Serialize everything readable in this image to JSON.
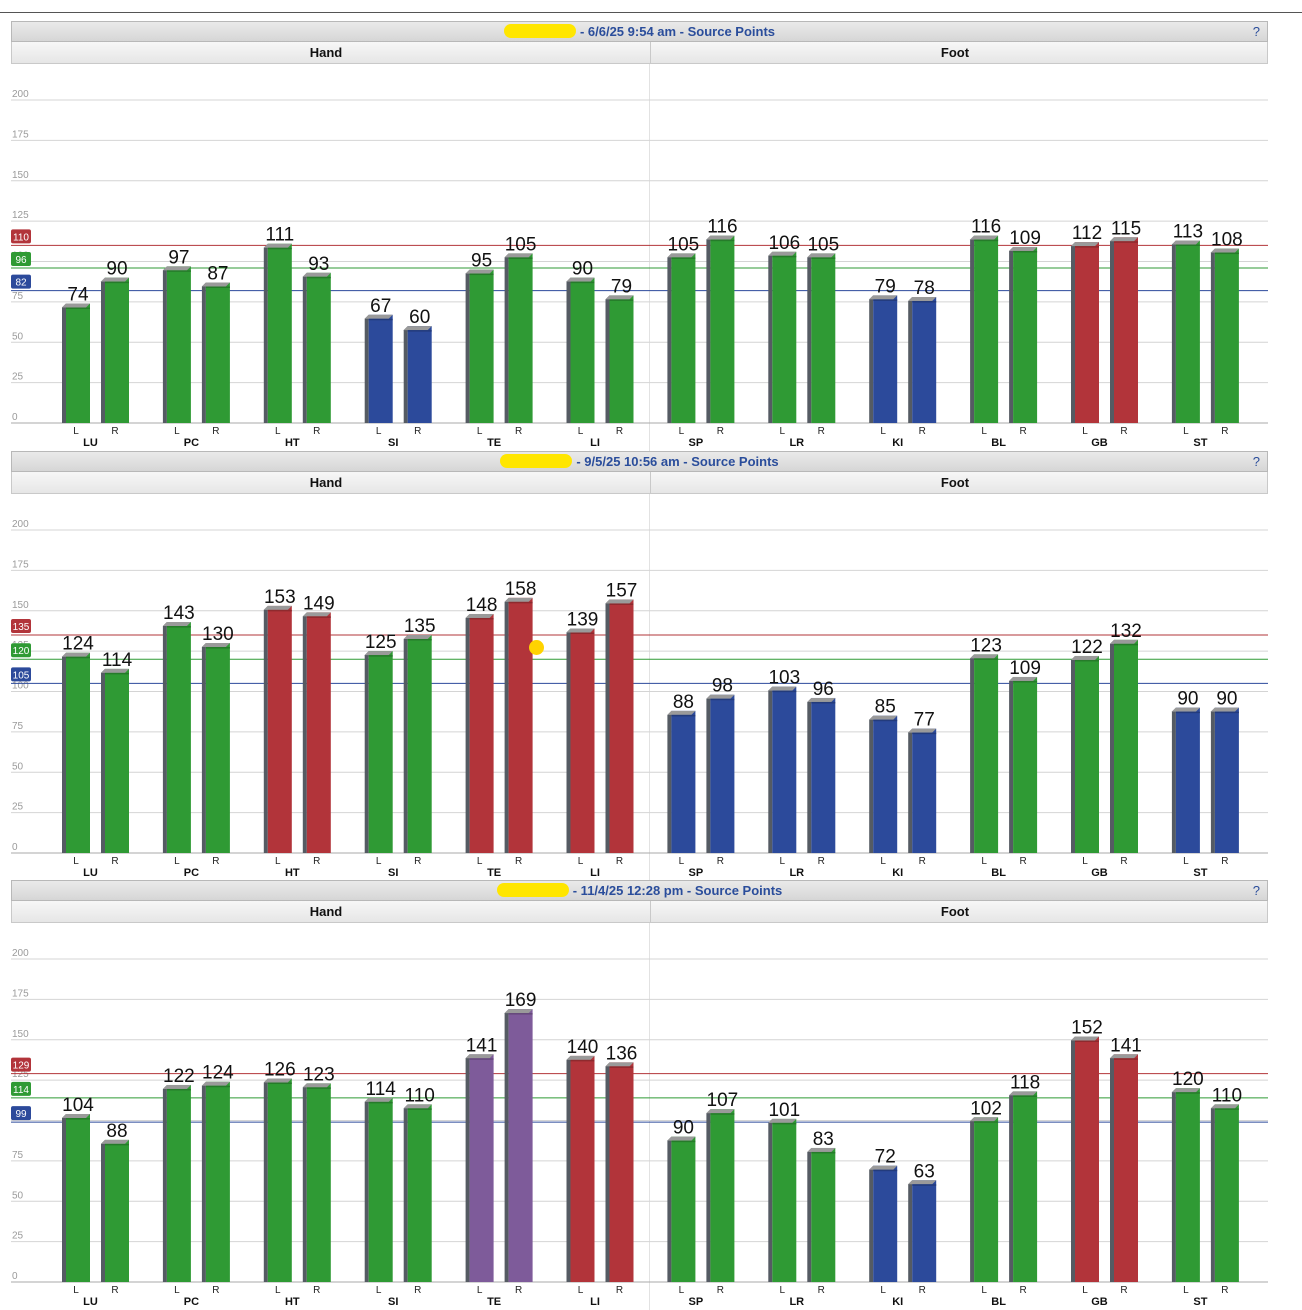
{
  "sections": [
    "Hand",
    "Foot"
  ],
  "help_icon": "?",
  "series_suffix": "Source Points",
  "colors": {
    "green": "#2f9a34",
    "red": "#b2343a",
    "blue": "#2c4a9b",
    "purple": "#7e5b9a",
    "title_text": "#2a4d9b"
  },
  "chart_data": [
    {
      "type": "bar",
      "title": "6/6/25 9:54 am - Source Points",
      "categories": [
        "LU",
        "PC",
        "HT",
        "SI",
        "TE",
        "LI",
        "SP",
        "LR",
        "KI",
        "BL",
        "GB",
        "ST"
      ],
      "sides": [
        "L",
        "R"
      ],
      "ylim": [
        0,
        200
      ],
      "yticks": [
        0,
        25,
        50,
        75,
        100,
        125,
        150,
        175,
        200
      ],
      "reference_lines": [
        {
          "value": 110,
          "color": "red",
          "label": "110"
        },
        {
          "value": 96,
          "color": "green",
          "label": "96"
        },
        {
          "value": 82,
          "color": "blue",
          "label": "82"
        }
      ],
      "series": [
        {
          "name": "L",
          "values": [
            74,
            97,
            111,
            67,
            95,
            90,
            105,
            106,
            79,
            116,
            112,
            113
          ],
          "colors": [
            "green",
            "green",
            "green",
            "blue",
            "green",
            "green",
            "green",
            "green",
            "blue",
            "green",
            "red",
            "green"
          ]
        },
        {
          "name": "R",
          "values": [
            90,
            87,
            93,
            60,
            105,
            79,
            116,
            105,
            78,
            109,
            115,
            108
          ],
          "colors": [
            "green",
            "green",
            "green",
            "blue",
            "green",
            "green",
            "green",
            "green",
            "blue",
            "green",
            "red",
            "green"
          ]
        }
      ]
    },
    {
      "type": "bar",
      "title": "9/5/25 10:56 am - Source Points",
      "categories": [
        "LU",
        "PC",
        "HT",
        "SI",
        "TE",
        "LI",
        "SP",
        "LR",
        "KI",
        "BL",
        "GB",
        "ST"
      ],
      "sides": [
        "L",
        "R"
      ],
      "ylim": [
        0,
        200
      ],
      "yticks": [
        0,
        25,
        50,
        75,
        100,
        125,
        150,
        175,
        200
      ],
      "reference_lines": [
        {
          "value": 135,
          "color": "red",
          "label": "135"
        },
        {
          "value": 120,
          "color": "green",
          "label": "120"
        },
        {
          "value": 105,
          "color": "blue",
          "label": "105"
        }
      ],
      "series": [
        {
          "name": "L",
          "values": [
            124,
            143,
            153,
            125,
            148,
            139,
            88,
            103,
            85,
            123,
            122,
            90
          ],
          "colors": [
            "green",
            "green",
            "red",
            "green",
            "red",
            "red",
            "blue",
            "blue",
            "blue",
            "green",
            "green",
            "blue"
          ]
        },
        {
          "name": "R",
          "values": [
            114,
            130,
            149,
            135,
            158,
            157,
            98,
            96,
            77,
            109,
            132,
            90
          ],
          "colors": [
            "green",
            "green",
            "red",
            "green",
            "red",
            "red",
            "blue",
            "blue",
            "blue",
            "green",
            "green",
            "blue"
          ]
        }
      ]
    },
    {
      "type": "bar",
      "title": "11/4/25 12:28 pm - Source Points",
      "categories": [
        "LU",
        "PC",
        "HT",
        "SI",
        "TE",
        "LI",
        "SP",
        "LR",
        "KI",
        "BL",
        "GB",
        "ST"
      ],
      "sides": [
        "L",
        "R"
      ],
      "ylim": [
        0,
        200
      ],
      "yticks": [
        0,
        25,
        50,
        75,
        100,
        125,
        150,
        175,
        200
      ],
      "reference_lines": [
        {
          "value": 129,
          "color": "red",
          "label": "129"
        },
        {
          "value": 114,
          "color": "green",
          "label": "114"
        },
        {
          "value": 99,
          "color": "blue",
          "label": "99"
        }
      ],
      "series": [
        {
          "name": "L",
          "values": [
            104,
            122,
            126,
            114,
            141,
            140,
            90,
            101,
            72,
            102,
            152,
            120
          ],
          "colors": [
            "green",
            "green",
            "green",
            "green",
            "purple",
            "red",
            "green",
            "green",
            "blue",
            "green",
            "red",
            "green"
          ]
        },
        {
          "name": "R",
          "values": [
            88,
            124,
            123,
            110,
            169,
            136,
            107,
            83,
            63,
            118,
            141,
            110
          ],
          "colors": [
            "green",
            "green",
            "green",
            "green",
            "purple",
            "red",
            "green",
            "green",
            "blue",
            "green",
            "red",
            "green"
          ]
        }
      ]
    }
  ]
}
